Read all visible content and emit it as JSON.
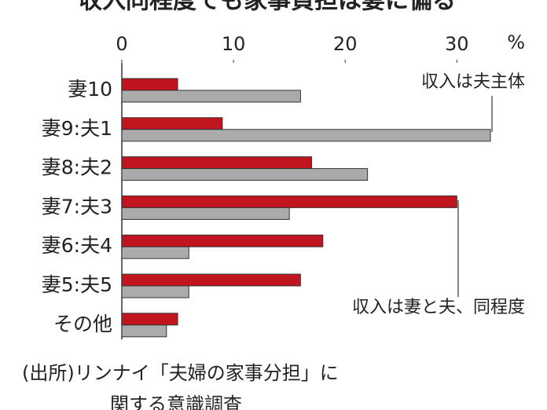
{
  "chart_data": {
    "type": "hbar",
    "title": "収入同程度でも家事負担は妻に偏る",
    "unit": "%",
    "source": [
      "(出所)リンナイ「夫婦の家事分担」に",
      "関する意識調査"
    ],
    "categories": [
      "妻10",
      "妻9:夫1",
      "妻8:夫2",
      "妻7:夫3",
      "妻6:夫4",
      "妻5:夫5",
      "その他"
    ],
    "series": [
      {
        "name": "収入は妻と夫、同程度",
        "color": "#c0141f",
        "values": [
          5,
          9,
          17,
          30,
          18,
          16,
          5
        ]
      },
      {
        "name": "収入は夫主体",
        "color": "#ababab",
        "values": [
          16,
          33,
          22,
          15,
          6,
          6,
          4
        ]
      }
    ],
    "xlim": [
      0,
      38
    ],
    "xticks": [
      0,
      10,
      20,
      30
    ]
  }
}
